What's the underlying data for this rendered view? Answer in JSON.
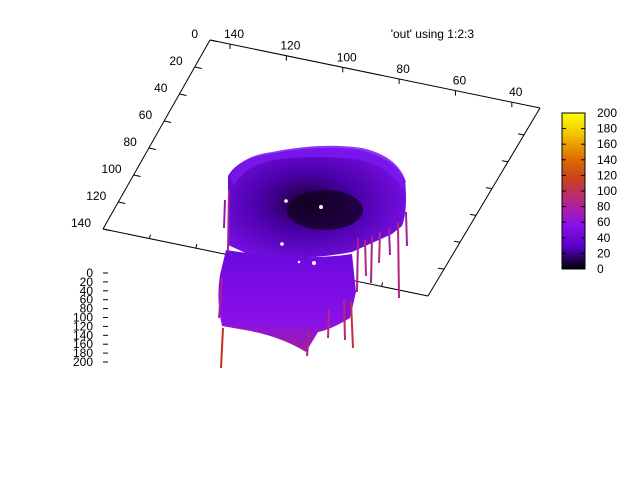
{
  "chart_data": {
    "type": "surface",
    "title": "",
    "legend": {
      "entry": "'out' using 1:2:3",
      "placement": "top-right"
    },
    "x_axis": {
      "range": [
        140,
        30
      ],
      "ticks": [
        140,
        120,
        100,
        80,
        60,
        40
      ]
    },
    "y_axis": {
      "range": [
        0,
        140
      ],
      "ticks": [
        0,
        20,
        40,
        60,
        80,
        100,
        120,
        140
      ]
    },
    "z_axis": {
      "range": [
        0,
        200
      ],
      "ticks": [
        0,
        20,
        40,
        60,
        80,
        100,
        120,
        140,
        160,
        180,
        200
      ]
    },
    "colorbox": {
      "range": [
        0,
        200
      ],
      "ticks": [
        0,
        20,
        40,
        60,
        80,
        100,
        120,
        140,
        160,
        180,
        200
      ],
      "palette": [
        "#000000",
        "#5a00c8",
        "#8a10e8",
        "#b4258c",
        "#c84020",
        "#e07000",
        "#f0c000",
        "#ffff00"
      ]
    },
    "series": [
      {
        "name": "'out' using 1:2:3",
        "z_typical": [
          20,
          60
        ],
        "z_max": 200
      }
    ]
  }
}
